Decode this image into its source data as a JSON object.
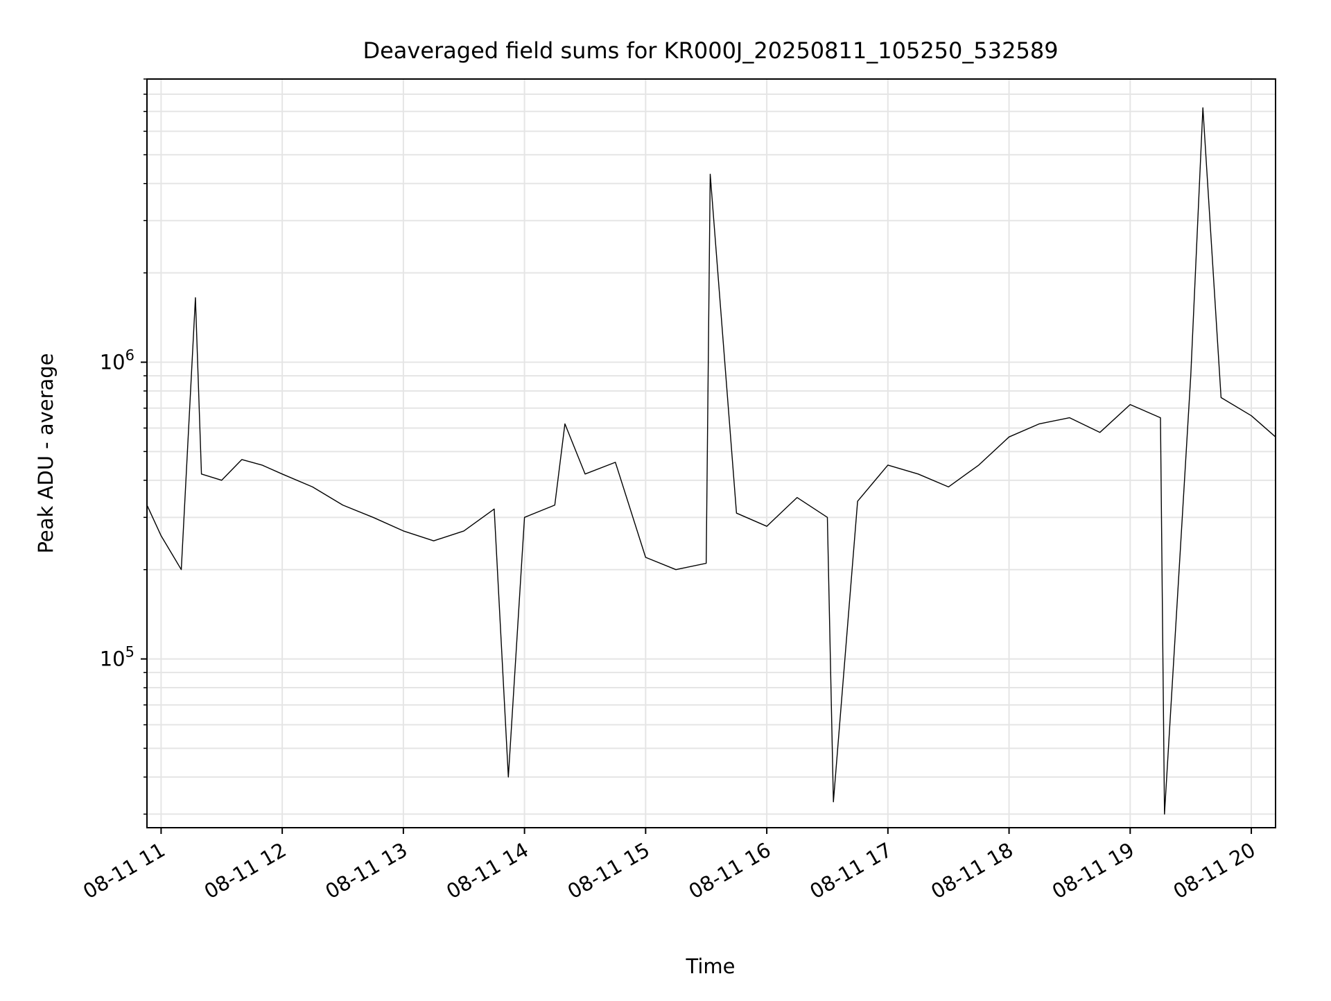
{
  "chart_data": {
    "type": "line",
    "title": "Deaveraged field sums for KR000J_20250811_105250_532589",
    "xlabel": "Time",
    "ylabel": "Peak ADU - average",
    "yscale": "log",
    "ylim": [
      27000,
      9000000
    ],
    "xlim": [
      "2025-08-11 10:53",
      "2025-08-11 20:12"
    ],
    "grid": true,
    "line_color": "#000000",
    "grid_color": "#e5e5e5",
    "x_ticks": [
      {
        "time": "2025-08-11 11:00",
        "label": "08-11 11"
      },
      {
        "time": "2025-08-11 12:00",
        "label": "08-11 12"
      },
      {
        "time": "2025-08-11 13:00",
        "label": "08-11 13"
      },
      {
        "time": "2025-08-11 14:00",
        "label": "08-11 14"
      },
      {
        "time": "2025-08-11 15:00",
        "label": "08-11 15"
      },
      {
        "time": "2025-08-11 16:00",
        "label": "08-11 16"
      },
      {
        "time": "2025-08-11 17:00",
        "label": "08-11 17"
      },
      {
        "time": "2025-08-11 18:00",
        "label": "08-11 18"
      },
      {
        "time": "2025-08-11 19:00",
        "label": "08-11 19"
      },
      {
        "time": "2025-08-11 20:00",
        "label": "08-11 20"
      }
    ],
    "y_ticks": [
      {
        "value": 100000,
        "base": "10",
        "exp": "5"
      },
      {
        "value": 1000000,
        "base": "10",
        "exp": "6"
      }
    ],
    "series": [
      {
        "x": [
          "2025-08-11 10:53",
          "2025-08-11 11:00",
          "2025-08-11 11:10",
          "2025-08-11 11:17",
          "2025-08-11 11:20",
          "2025-08-11 11:30",
          "2025-08-11 11:40",
          "2025-08-11 11:50",
          "2025-08-11 12:00",
          "2025-08-11 12:15",
          "2025-08-11 12:30",
          "2025-08-11 12:45",
          "2025-08-11 13:00",
          "2025-08-11 13:15",
          "2025-08-11 13:30",
          "2025-08-11 13:45",
          "2025-08-11 13:52",
          "2025-08-11 14:00",
          "2025-08-11 14:15",
          "2025-08-11 14:20",
          "2025-08-11 14:30",
          "2025-08-11 14:45",
          "2025-08-11 15:00",
          "2025-08-11 15:15",
          "2025-08-11 15:30",
          "2025-08-11 15:32",
          "2025-08-11 15:45",
          "2025-08-11 16:00",
          "2025-08-11 16:15",
          "2025-08-11 16:30",
          "2025-08-11 16:33",
          "2025-08-11 16:45",
          "2025-08-11 17:00",
          "2025-08-11 17:15",
          "2025-08-11 17:30",
          "2025-08-11 17:45",
          "2025-08-11 18:00",
          "2025-08-11 18:15",
          "2025-08-11 18:30",
          "2025-08-11 18:45",
          "2025-08-11 19:00",
          "2025-08-11 19:15",
          "2025-08-11 19:17",
          "2025-08-11 19:30",
          "2025-08-11 19:36",
          "2025-08-11 19:45",
          "2025-08-11 20:00",
          "2025-08-11 20:12"
        ],
        "y": [
          330000,
          260000,
          200000,
          1650000,
          420000,
          400000,
          470000,
          450000,
          420000,
          380000,
          330000,
          300000,
          270000,
          250000,
          270000,
          320000,
          40000,
          300000,
          330000,
          620000,
          420000,
          460000,
          220000,
          200000,
          210000,
          4300000,
          310000,
          280000,
          350000,
          300000,
          33000,
          340000,
          450000,
          420000,
          380000,
          450000,
          560000,
          620000,
          650000,
          580000,
          720000,
          650000,
          30000,
          900000,
          7200000,
          760000,
          660000,
          560000
        ]
      }
    ]
  }
}
